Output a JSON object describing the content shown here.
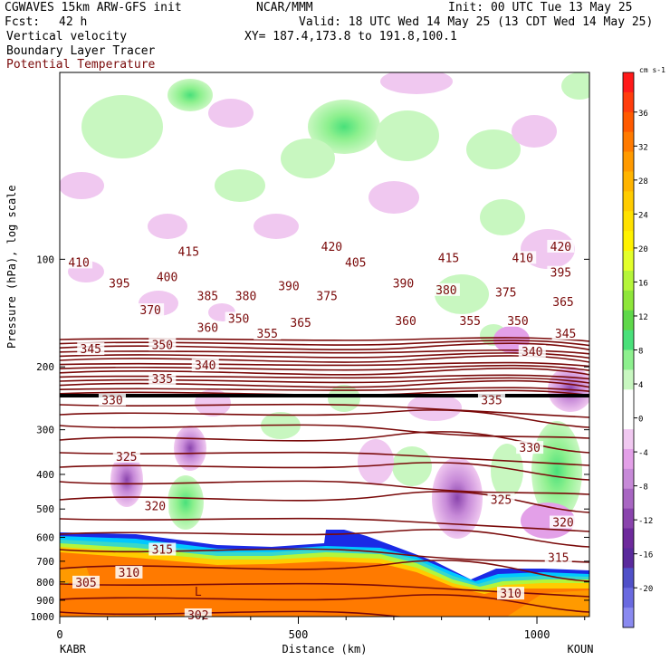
{
  "header": {
    "left1": "CGWAVES 15km ARW-GFS init",
    "center1": "NCAR/MMM",
    "right1": "Init: 00 UTC Tue 13 May 25",
    "fcst_label": "Fcst:",
    "fcst_value": "42 h",
    "valid": "Valid: 18 UTC Wed 14 May 25 (13 CDT Wed 14 May 25)",
    "field1": "Vertical velocity",
    "field2": "Boundary Layer Tracer",
    "field3": "Potential Temperature",
    "xy": "XY= 187.4,173.8 to 191.8,100.1"
  },
  "chart_data": {
    "type": "heatmap",
    "ylabel": "Pressure (hPa), log scale",
    "xlabel": "Distance (km)",
    "x_ticks": [
      0,
      500,
      1000
    ],
    "x_endpoint_labels": [
      "KABR",
      "KOUN"
    ],
    "xlim": [
      0,
      1110
    ],
    "y_ticks": [
      100,
      200,
      300,
      400,
      500,
      600,
      700,
      800,
      900,
      1000
    ],
    "ylim": [
      1000,
      30
    ],
    "y_scale": "log",
    "colorbar": {
      "unit": "cm s-1",
      "labels": [
        36,
        32,
        28,
        24,
        20,
        16,
        12,
        8,
        4,
        0,
        -4,
        -8,
        -12,
        -16,
        -20
      ],
      "colors": [
        "#ff1a1a",
        "#ff3d0d",
        "#ff5a00",
        "#ff7a00",
        "#ff9a00",
        "#ffb400",
        "#ffcc00",
        "#ffe100",
        "#fff200",
        "#e3ff2a",
        "#b5f53a",
        "#8ee63a",
        "#5fd84a",
        "#49e07a",
        "#8df08e",
        "#c8f7c0",
        "#ffffff",
        "#ffffff",
        "#f0c8f0",
        "#e3a0e8",
        "#c78ad8",
        "#a866c2",
        "#8a44ad",
        "#6e2a9c",
        "#5a2a9c",
        "#5050c8",
        "#6a6ae0",
        "#8a8af0"
      ]
    },
    "theta_labels": [
      {
        "v": "415",
        "x": 270,
        "p": 96
      },
      {
        "v": "420",
        "x": 570,
        "p": 93
      },
      {
        "v": "420",
        "x": 1050,
        "p": 93
      },
      {
        "v": "410",
        "x": 40,
        "p": 103
      },
      {
        "v": "405",
        "x": 620,
        "p": 103
      },
      {
        "v": "415",
        "x": 815,
        "p": 100
      },
      {
        "v": "410",
        "x": 970,
        "p": 100
      },
      {
        "v": "395",
        "x": 125,
        "p": 118
      },
      {
        "v": "400",
        "x": 225,
        "p": 113
      },
      {
        "v": "390",
        "x": 480,
        "p": 120
      },
      {
        "v": "390",
        "x": 720,
        "p": 118
      },
      {
        "v": "395",
        "x": 1050,
        "p": 110
      },
      {
        "v": "385",
        "x": 310,
        "p": 128
      },
      {
        "v": "380",
        "x": 390,
        "p": 128
      },
      {
        "v": "375",
        "x": 560,
        "p": 128
      },
      {
        "v": "380",
        "x": 810,
        "p": 123
      },
      {
        "v": "375",
        "x": 935,
        "p": 125
      },
      {
        "v": "365",
        "x": 1055,
        "p": 133
      },
      {
        "v": "370",
        "x": 190,
        "p": 140
      },
      {
        "v": "350",
        "x": 375,
        "p": 148
      },
      {
        "v": "365",
        "x": 505,
        "p": 152
      },
      {
        "v": "360",
        "x": 725,
        "p": 150
      },
      {
        "v": "355",
        "x": 860,
        "p": 150
      },
      {
        "v": "350",
        "x": 960,
        "p": 150
      },
      {
        "v": "360",
        "x": 310,
        "p": 157
      },
      {
        "v": "355",
        "x": 435,
        "p": 163
      },
      {
        "v": "345",
        "x": 1060,
        "p": 163
      },
      {
        "v": "345",
        "x": 65,
        "p": 180
      },
      {
        "v": "350",
        "x": 215,
        "p": 175
      },
      {
        "v": "340",
        "x": 990,
        "p": 183
      },
      {
        "v": "340",
        "x": 305,
        "p": 200
      },
      {
        "v": "335",
        "x": 215,
        "p": 218
      },
      {
        "v": "335",
        "x": 905,
        "p": 250
      },
      {
        "v": "330",
        "x": 110,
        "p": 250
      },
      {
        "v": "330",
        "x": 985,
        "p": 340
      },
      {
        "v": "325",
        "x": 140,
        "p": 360
      },
      {
        "v": "325",
        "x": 925,
        "p": 475
      },
      {
        "v": "320",
        "x": 200,
        "p": 495
      },
      {
        "v": "320",
        "x": 1055,
        "p": 550
      },
      {
        "v": "315",
        "x": 215,
        "p": 655
      },
      {
        "v": "315",
        "x": 1045,
        "p": 690
      },
      {
        "v": "310",
        "x": 145,
        "p": 760
      },
      {
        "v": "310",
        "x": 945,
        "p": 870
      },
      {
        "v": "305",
        "x": 55,
        "p": 810
      },
      {
        "v": "302",
        "x": 290,
        "p": 1000
      }
    ],
    "low_marker": {
      "label": "L",
      "x": 290,
      "p": 900
    }
  }
}
